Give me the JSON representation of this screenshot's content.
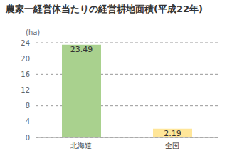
{
  "chart_data": {
    "type": "bar",
    "title": "農家一経営体当たりの経営耕地面積(平成22年)",
    "y_label": "(ha)",
    "categories": [
      "北海道",
      "全国"
    ],
    "values": [
      23.49,
      2.19
    ],
    "colors": [
      "#a9d18e",
      "#ffe699"
    ],
    "ylim": [
      0,
      24
    ],
    "yticks": [
      0,
      4,
      8,
      12,
      16,
      20,
      24
    ],
    "grid": true,
    "data_labels": true
  }
}
